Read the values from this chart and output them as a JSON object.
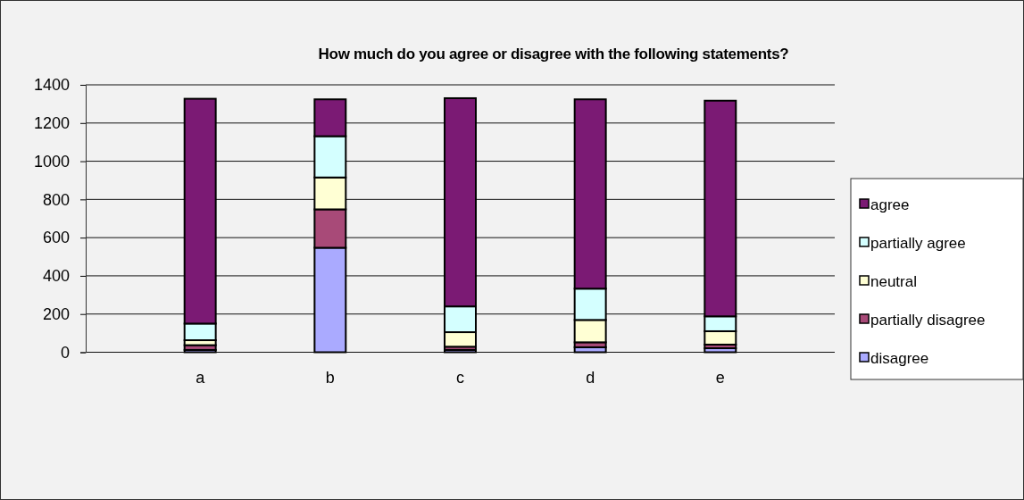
{
  "chart_data": {
    "type": "bar",
    "title": "How much do you agree or disagree with the following statements?",
    "categories": [
      "a",
      "b",
      "c",
      "d",
      "e"
    ],
    "stacked": true,
    "series": [
      {
        "name": "disagree",
        "color": "#aaaaff",
        "values": [
          12,
          547,
          12,
          26,
          21
        ]
      },
      {
        "name": "partially disagree",
        "color": "#a84a78",
        "values": [
          25,
          201,
          17,
          26,
          19
        ]
      },
      {
        "name": "neutral",
        "color": "#ffffd4",
        "values": [
          26,
          167,
          76,
          117,
          70
        ]
      },
      {
        "name": "partially agree",
        "color": "#d4ffff",
        "values": [
          87,
          216,
          135,
          164,
          78
        ]
      },
      {
        "name": "agree",
        "color": "#7b1a74",
        "values": [
          1177,
          193,
          1090,
          991,
          1129
        ]
      }
    ],
    "ylim": [
      0,
      1400
    ],
    "yticks": [
      0,
      200,
      400,
      600,
      800,
      1000,
      1200,
      1400
    ],
    "grid": "y",
    "legend": "right"
  }
}
